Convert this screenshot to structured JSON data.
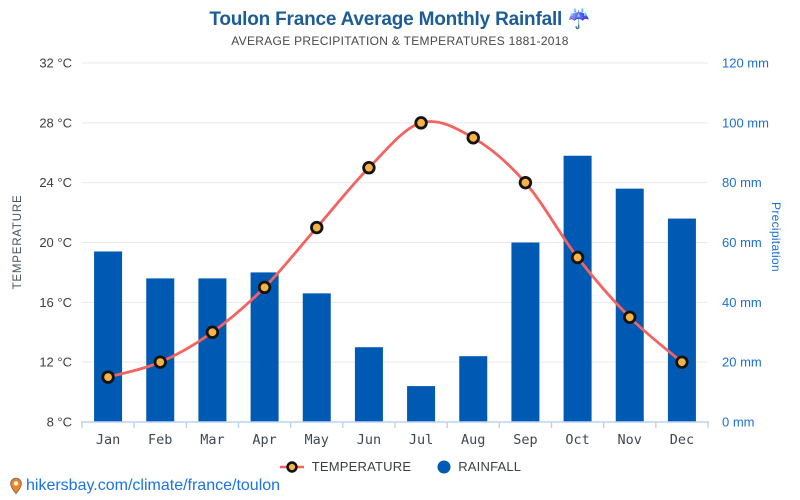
{
  "header": {
    "title": "Toulon France Average Monthly Rainfall ☔",
    "subtitle": "AVERAGE PRECIPITATION & TEMPERATURES 1881-2018"
  },
  "chart_data": {
    "type": "combo-bar-line",
    "title": "Toulon France Average Monthly Rainfall",
    "subtitle": "AVERAGE PRECIPITATION & TEMPERATURES 1881-2018",
    "categories": [
      "Jan",
      "Feb",
      "Mar",
      "Apr",
      "May",
      "Jun",
      "Jul",
      "Aug",
      "Sep",
      "Oct",
      "Nov",
      "Dec"
    ],
    "series": [
      {
        "name": "TEMPERATURE",
        "type": "line",
        "axis": "left",
        "unit": "°C",
        "values": [
          11,
          12,
          14,
          17,
          21,
          25,
          28,
          27,
          24,
          19,
          15,
          12
        ],
        "color": "#f4635f",
        "marker_fill": "#f9b342",
        "marker_stroke": "#131313"
      },
      {
        "name": "RAINFALL",
        "type": "bar",
        "axis": "right",
        "unit": "mm",
        "values": [
          57,
          48,
          48,
          50,
          43,
          25,
          12,
          22,
          60,
          89,
          78,
          68
        ],
        "color": "#0059b2"
      }
    ],
    "left_axis": {
      "title": "TEMPERATURE",
      "min": 8,
      "max": 32,
      "step": 4,
      "tick_labels": [
        "8 °C",
        "12 °C",
        "16 °C",
        "20 °C",
        "24 °C",
        "28 °C",
        "32 °C"
      ]
    },
    "right_axis": {
      "title": "Precipitation",
      "min": 0,
      "max": 120,
      "step": 20,
      "tick_labels": [
        "0 mm",
        "20 mm",
        "40 mm",
        "60 mm",
        "80 mm",
        "100 mm",
        "120 mm"
      ]
    },
    "grid": true,
    "legend_position": "bottom"
  },
  "legend": {
    "items": [
      {
        "label": "TEMPERATURE",
        "icon": "line-marker-icon"
      },
      {
        "label": "RAINFALL",
        "icon": "dot-icon"
      }
    ]
  },
  "footer": {
    "link_text": "hikersbay.com/climate/france/toulon",
    "icon": "map-pin-icon"
  },
  "colors": {
    "title": "#1d5d97",
    "subtitle": "#484848",
    "bar": "#0059b2",
    "line": "#f4635f",
    "marker_fill": "#f9b342",
    "marker_stroke": "#131313",
    "grid": "#e9e9e9",
    "axis_line": "#bdd3ee",
    "left_axis_text": "#3e3e3e",
    "right_axis_text": "#1a6fd4",
    "link": "#1a73e8"
  }
}
